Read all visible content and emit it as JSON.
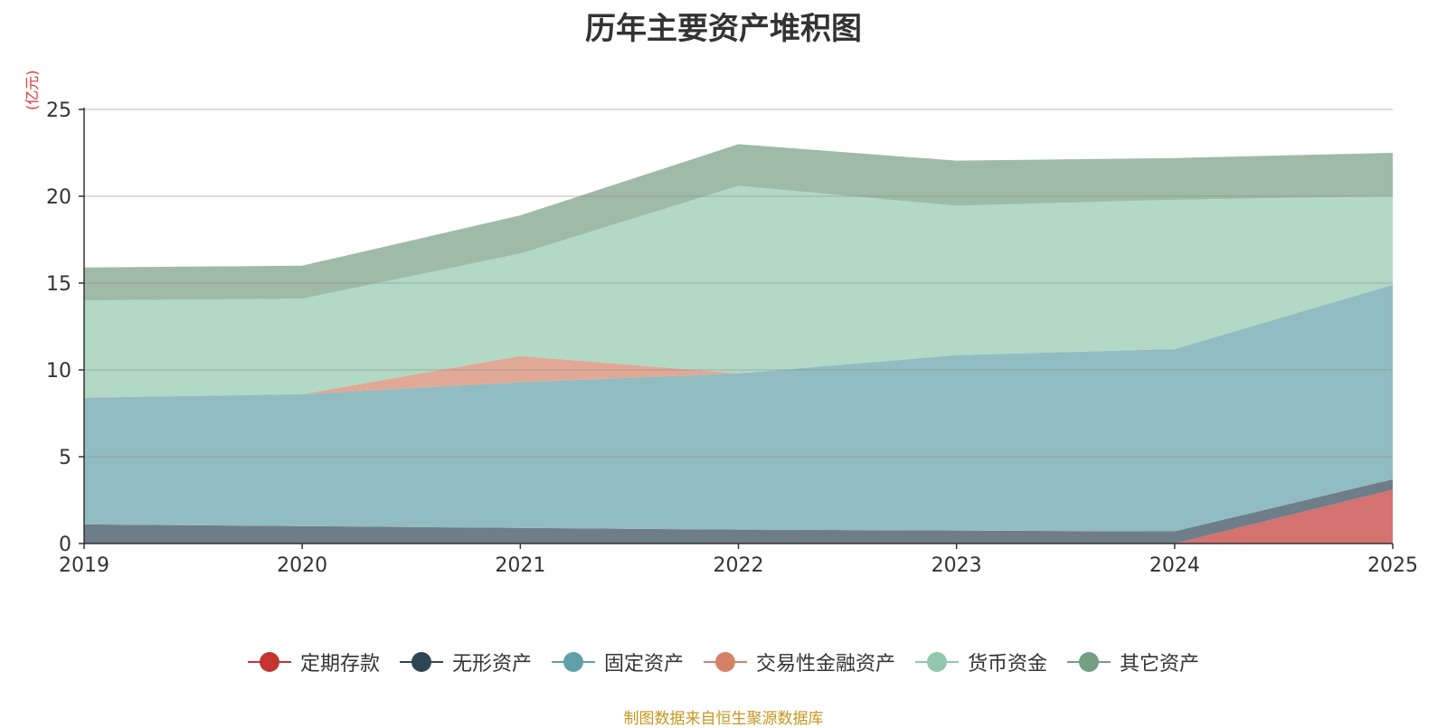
{
  "chart_data": {
    "type": "area",
    "stacked": true,
    "title": "历年主要资产堆积图",
    "ylabel": "(亿元)",
    "xlabel": "",
    "categories": [
      "2019",
      "2020",
      "2021",
      "2022",
      "2023",
      "2024",
      "2025"
    ],
    "ylim": [
      0,
      25
    ],
    "yticks": [
      0,
      5,
      10,
      15,
      20,
      25
    ],
    "series": [
      {
        "name": "定期存款",
        "color": "#c23531",
        "fill": "#d47370",
        "values": [
          0,
          0,
          0,
          0,
          0,
          0,
          3.1
        ]
      },
      {
        "name": "无形资产",
        "color": "#2f4554",
        "fill": "#6e7d88",
        "values": [
          1.1,
          1.0,
          0.9,
          0.8,
          0.75,
          0.7,
          0.6
        ]
      },
      {
        "name": "固定资产",
        "color": "#61a0a8",
        "fill": "#91bcc2",
        "values": [
          7.3,
          7.6,
          8.4,
          9.0,
          10.1,
          10.5,
          11.2
        ]
      },
      {
        "name": "交易性金融资产",
        "color": "#d48265",
        "fill": "#e1a896",
        "values": [
          0,
          0,
          1.5,
          0,
          0,
          0,
          0
        ]
      },
      {
        "name": "货币资金",
        "color": "#91c7ae",
        "fill": "#b1d9c6",
        "values": [
          5.6,
          5.5,
          5.9,
          10.8,
          8.6,
          8.6,
          5.1
        ]
      },
      {
        "name": "其它资产",
        "color": "#749f83",
        "fill": "#9fbba7",
        "values": [
          1.9,
          1.9,
          2.2,
          2.4,
          2.6,
          2.4,
          2.5
        ]
      }
    ],
    "legend_position": "bottom",
    "grid": true
  },
  "source_text": "制图数据来自恒生聚源数据库"
}
